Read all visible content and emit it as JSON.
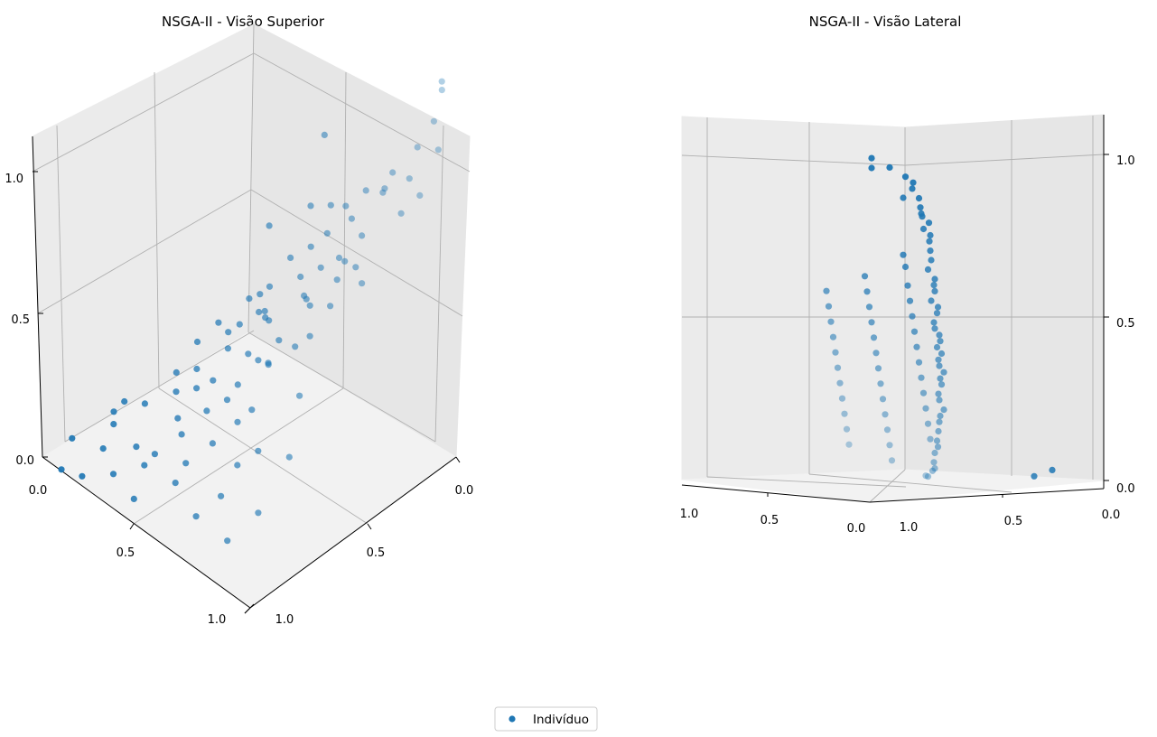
{
  "chart_data": [
    {
      "type": "scatter",
      "title": "NSGA-II - Visão Superior",
      "xlabel": "",
      "ylabel": "",
      "zlabel": "",
      "xlim": [
        0,
        1
      ],
      "ylim": [
        0,
        1
      ],
      "zlim": [
        0,
        1.3
      ],
      "x_ticks": [
        "0.0",
        "0.5",
        "1.0"
      ],
      "y_ticks": [
        "0.0",
        "0.5",
        "1.0"
      ],
      "z_ticks": [
        "0.0",
        "0.5",
        "1.0"
      ],
      "grid": true,
      "view": "elev 30, azim 45",
      "series": [
        {
          "name": "Indivíduo",
          "points": [
            [
              0.03,
              0.03,
              1.32
            ],
            [
              0.03,
              0.03,
              1.29
            ],
            [
              0.05,
              0.05,
              1.18
            ],
            [
              0.04,
              0.04,
              1.08
            ],
            [
              0.1,
              0.08,
              1.08
            ],
            [
              0.12,
              0.1,
              0.97
            ],
            [
              0.15,
              0.15,
              1.0
            ],
            [
              0.05,
              0.12,
              0.95
            ],
            [
              0.08,
              0.18,
              0.9
            ],
            [
              0.22,
              0.12,
              0.9
            ],
            [
              0.28,
              0.15,
              0.88
            ],
            [
              0.2,
              0.25,
              0.8
            ],
            [
              0.3,
              0.05,
              0.82
            ],
            [
              0.35,
              0.15,
              0.75
            ],
            [
              0.45,
              0.08,
              0.72
            ],
            [
              0.18,
              0.3,
              0.72
            ],
            [
              0.28,
              0.28,
              0.7
            ],
            [
              0.1,
              0.35,
              0.72
            ],
            [
              0.22,
              0.35,
              0.68
            ],
            [
              0.4,
              0.25,
              0.6
            ],
            [
              0.5,
              0.12,
              0.62
            ],
            [
              0.35,
              0.38,
              0.58
            ],
            [
              0.25,
              0.45,
              0.62
            ],
            [
              0.4,
              0.32,
              0.52
            ],
            [
              0.55,
              0.2,
              0.48
            ],
            [
              0.6,
              0.1,
              0.52
            ],
            [
              0.45,
              0.45,
              0.48
            ],
            [
              0.3,
              0.55,
              0.52
            ],
            [
              0.15,
              0.55,
              0.6
            ],
            [
              0.05,
              0.55,
              0.75
            ],
            [
              0.12,
              0.65,
              0.62
            ],
            [
              0.25,
              0.65,
              0.5
            ],
            [
              0.48,
              0.52,
              0.38
            ],
            [
              0.62,
              0.3,
              0.35
            ],
            [
              0.7,
              0.2,
              0.38
            ],
            [
              0.72,
              0.08,
              0.42
            ],
            [
              0.55,
              0.62,
              0.3
            ],
            [
              0.38,
              0.72,
              0.35
            ],
            [
              0.2,
              0.78,
              0.42
            ],
            [
              0.05,
              0.7,
              0.5
            ],
            [
              0.0,
              0.8,
              0.35
            ],
            [
              0.7,
              0.4,
              0.25
            ],
            [
              0.8,
              0.3,
              0.22
            ],
            [
              0.85,
              0.15,
              0.25
            ],
            [
              0.9,
              0.05,
              0.2
            ],
            [
              0.62,
              0.72,
              0.18
            ],
            [
              0.5,
              0.82,
              0.22
            ],
            [
              0.32,
              0.85,
              0.28
            ],
            [
              0.15,
              0.9,
              0.3
            ],
            [
              0.0,
              0.95,
              0.22
            ],
            [
              0.8,
              0.55,
              0.12
            ],
            [
              0.9,
              0.45,
              0.1
            ],
            [
              0.95,
              0.3,
              0.12
            ],
            [
              1.0,
              0.15,
              0.1
            ],
            [
              1.0,
              0.05,
              0.05
            ],
            [
              0.72,
              0.82,
              0.08
            ],
            [
              0.58,
              0.92,
              0.12
            ],
            [
              0.4,
              0.95,
              0.15
            ],
            [
              0.25,
              1.0,
              0.12
            ],
            [
              0.1,
              1.0,
              0.1
            ],
            [
              0.95,
              0.7,
              0.05
            ],
            [
              1.0,
              0.6,
              0.02
            ],
            [
              0.85,
              0.85,
              0.03
            ],
            [
              0.7,
              0.95,
              0.05
            ],
            [
              0.55,
              1.0,
              0.05
            ],
            [
              1.0,
              0.85,
              0.0
            ],
            [
              0.9,
              1.0,
              0.0
            ],
            [
              0.8,
              1.0,
              0.02
            ],
            [
              0.65,
              0.05,
              0.62
            ],
            [
              0.75,
              0.15,
              0.55
            ],
            [
              0.6,
              0.35,
              0.4
            ],
            [
              0.35,
              0.6,
              0.45
            ],
            [
              0.2,
              0.7,
              0.55
            ],
            [
              0.08,
              0.45,
              0.85
            ],
            [
              0.45,
              0.6,
              0.32
            ],
            [
              0.75,
              0.5,
              0.2
            ],
            [
              0.65,
              0.6,
              0.22
            ],
            [
              0.5,
              0.7,
              0.25
            ],
            [
              0.3,
              0.75,
              0.32
            ],
            [
              0.1,
              0.85,
              0.35
            ],
            [
              0.85,
              0.65,
              0.1
            ],
            [
              0.6,
              0.85,
              0.12
            ],
            [
              0.42,
              0.88,
              0.18
            ],
            [
              0.18,
              0.95,
              0.2
            ],
            [
              0.9,
              0.75,
              0.05
            ],
            [
              0.52,
              0.4,
              0.46
            ],
            [
              0.42,
              0.18,
              0.78
            ],
            [
              0.58,
              0.05,
              0.9
            ]
          ]
        }
      ]
    },
    {
      "type": "scatter",
      "title": "NSGA-II - Visão Lateral",
      "xlabel": "",
      "ylabel": "",
      "zlabel": "",
      "xlim": [
        0,
        1
      ],
      "ylim": [
        0,
        1
      ],
      "zlim": [
        0,
        1
      ],
      "x_ticks": [
        "0.0",
        "0.5",
        "1.0"
      ],
      "y_ticks": [
        "1.0",
        "0.5",
        "0.0"
      ],
      "z_ticks": [
        "0.0",
        "0.5",
        "1.0"
      ],
      "grid": true,
      "view": "elev 5, azim 45",
      "series": [
        {
          "name": "Indivíduo",
          "points": [
            [
              0.0,
              0.0,
              1.0
            ],
            [
              0.0,
              0.0,
              1.03
            ],
            [
              0.08,
              0.0,
              1.0
            ],
            [
              0.15,
              0.0,
              0.97
            ],
            [
              0.2,
              0.02,
              0.95
            ],
            [
              0.22,
              0.05,
              0.93
            ],
            [
              0.25,
              0.05,
              0.9
            ],
            [
              0.22,
              0.1,
              0.9
            ],
            [
              0.28,
              0.08,
              0.87
            ],
            [
              0.3,
              0.1,
              0.85
            ],
            [
              0.32,
              0.12,
              0.84
            ],
            [
              0.35,
              0.12,
              0.82
            ],
            [
              0.35,
              0.15,
              0.8
            ],
            [
              0.38,
              0.15,
              0.78
            ],
            [
              0.4,
              0.18,
              0.76
            ],
            [
              0.42,
              0.2,
              0.73
            ],
            [
              0.44,
              0.22,
              0.7
            ],
            [
              0.45,
              0.25,
              0.67
            ],
            [
              0.48,
              0.25,
              0.64
            ],
            [
              0.5,
              0.28,
              0.62
            ],
            [
              0.52,
              0.3,
              0.6
            ],
            [
              0.52,
              0.32,
              0.57
            ],
            [
              0.55,
              0.32,
              0.55
            ],
            [
              0.57,
              0.35,
              0.53
            ],
            [
              0.58,
              0.38,
              0.5
            ],
            [
              0.6,
              0.4,
              0.48
            ],
            [
              0.62,
              0.4,
              0.46
            ],
            [
              0.64,
              0.42,
              0.44
            ],
            [
              0.65,
              0.45,
              0.42
            ],
            [
              0.67,
              0.45,
              0.4
            ],
            [
              0.68,
              0.48,
              0.38
            ],
            [
              0.7,
              0.5,
              0.36
            ],
            [
              0.72,
              0.5,
              0.34
            ],
            [
              0.72,
              0.52,
              0.32
            ],
            [
              0.75,
              0.55,
              0.3
            ],
            [
              0.76,
              0.58,
              0.27
            ],
            [
              0.78,
              0.6,
              0.25
            ],
            [
              0.8,
              0.6,
              0.22
            ],
            [
              0.8,
              0.62,
              0.2
            ],
            [
              0.82,
              0.65,
              0.18
            ],
            [
              0.84,
              0.68,
              0.15
            ],
            [
              0.85,
              0.7,
              0.12
            ],
            [
              0.87,
              0.72,
              0.1
            ],
            [
              0.88,
              0.75,
              0.08
            ],
            [
              0.9,
              0.78,
              0.05
            ],
            [
              0.92,
              0.8,
              0.03
            ],
            [
              0.95,
              0.85,
              0.02
            ],
            [
              0.97,
              0.9,
              0.0
            ],
            [
              1.0,
              0.95,
              0.0
            ],
            [
              0.3,
              0.2,
              0.72
            ],
            [
              0.35,
              0.25,
              0.68
            ],
            [
              0.4,
              0.3,
              0.62
            ],
            [
              0.45,
              0.35,
              0.57
            ],
            [
              0.5,
              0.4,
              0.52
            ],
            [
              0.55,
              0.45,
              0.47
            ],
            [
              0.6,
              0.5,
              0.42
            ],
            [
              0.65,
              0.55,
              0.37
            ],
            [
              0.7,
              0.6,
              0.32
            ],
            [
              0.75,
              0.65,
              0.27
            ],
            [
              0.8,
              0.7,
              0.22
            ],
            [
              0.85,
              0.75,
              0.17
            ],
            [
              0.9,
              0.8,
              0.12
            ],
            [
              0.25,
              0.35,
              0.65
            ],
            [
              0.3,
              0.4,
              0.6
            ],
            [
              0.35,
              0.45,
              0.55
            ],
            [
              0.4,
              0.5,
              0.5
            ],
            [
              0.45,
              0.55,
              0.45
            ],
            [
              0.5,
              0.6,
              0.4
            ],
            [
              0.55,
              0.65,
              0.35
            ],
            [
              0.6,
              0.7,
              0.3
            ],
            [
              0.65,
              0.75,
              0.25
            ],
            [
              0.7,
              0.8,
              0.2
            ],
            [
              0.75,
              0.85,
              0.15
            ],
            [
              0.8,
              0.9,
              0.1
            ],
            [
              0.85,
              0.95,
              0.05
            ],
            [
              0.2,
              0.5,
              0.6
            ],
            [
              0.25,
              0.55,
              0.55
            ],
            [
              0.3,
              0.6,
              0.5
            ],
            [
              0.35,
              0.65,
              0.45
            ],
            [
              0.4,
              0.7,
              0.4
            ],
            [
              0.45,
              0.75,
              0.35
            ],
            [
              0.5,
              0.8,
              0.3
            ],
            [
              0.55,
              0.85,
              0.25
            ],
            [
              0.6,
              0.9,
              0.2
            ],
            [
              0.65,
              0.95,
              0.15
            ],
            [
              0.7,
              1.0,
              0.1
            ],
            [
              0.92,
              0.15,
              0.05
            ],
            [
              0.88,
              0.2,
              0.03
            ]
          ]
        }
      ]
    }
  ],
  "legend": {
    "label": "Indivíduo",
    "placement": "lower center",
    "color": "#1f77b4"
  }
}
